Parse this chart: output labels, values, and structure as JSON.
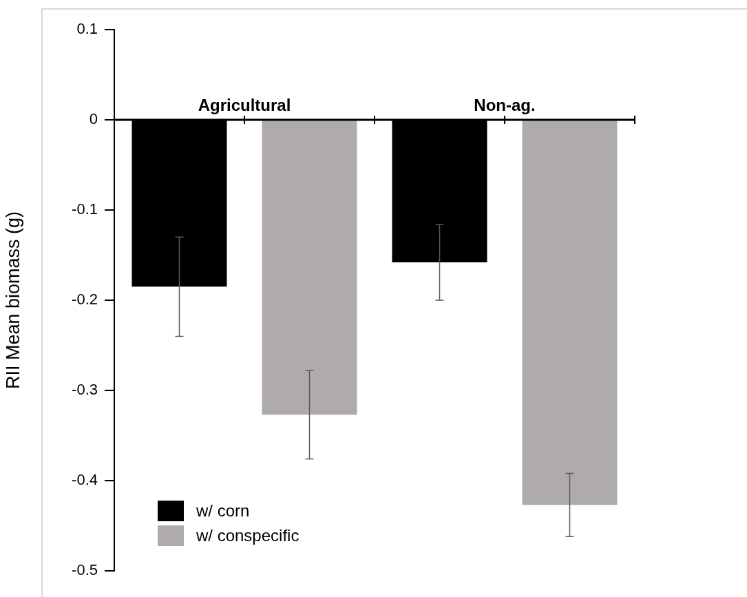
{
  "chart_data": {
    "type": "bar",
    "ylabel": "RII Mean biomass (g)",
    "categories": [
      "Agricultural",
      "Non-ag."
    ],
    "series": [
      {
        "name": "w/ corn",
        "color": "#000000",
        "values": [
          -0.185,
          -0.158
        ],
        "errors": [
          0.055,
          0.042
        ]
      },
      {
        "name": "w/ conspecific",
        "color": "#afabab",
        "values": [
          -0.327,
          -0.427
        ],
        "errors": [
          0.049,
          0.035
        ]
      }
    ],
    "ylim": [
      -0.5,
      0.1
    ],
    "yticks": [
      -0.5,
      -0.4,
      -0.3,
      -0.2,
      -0.1,
      0,
      0.1
    ],
    "grid": false,
    "legend": "bottom left"
  }
}
